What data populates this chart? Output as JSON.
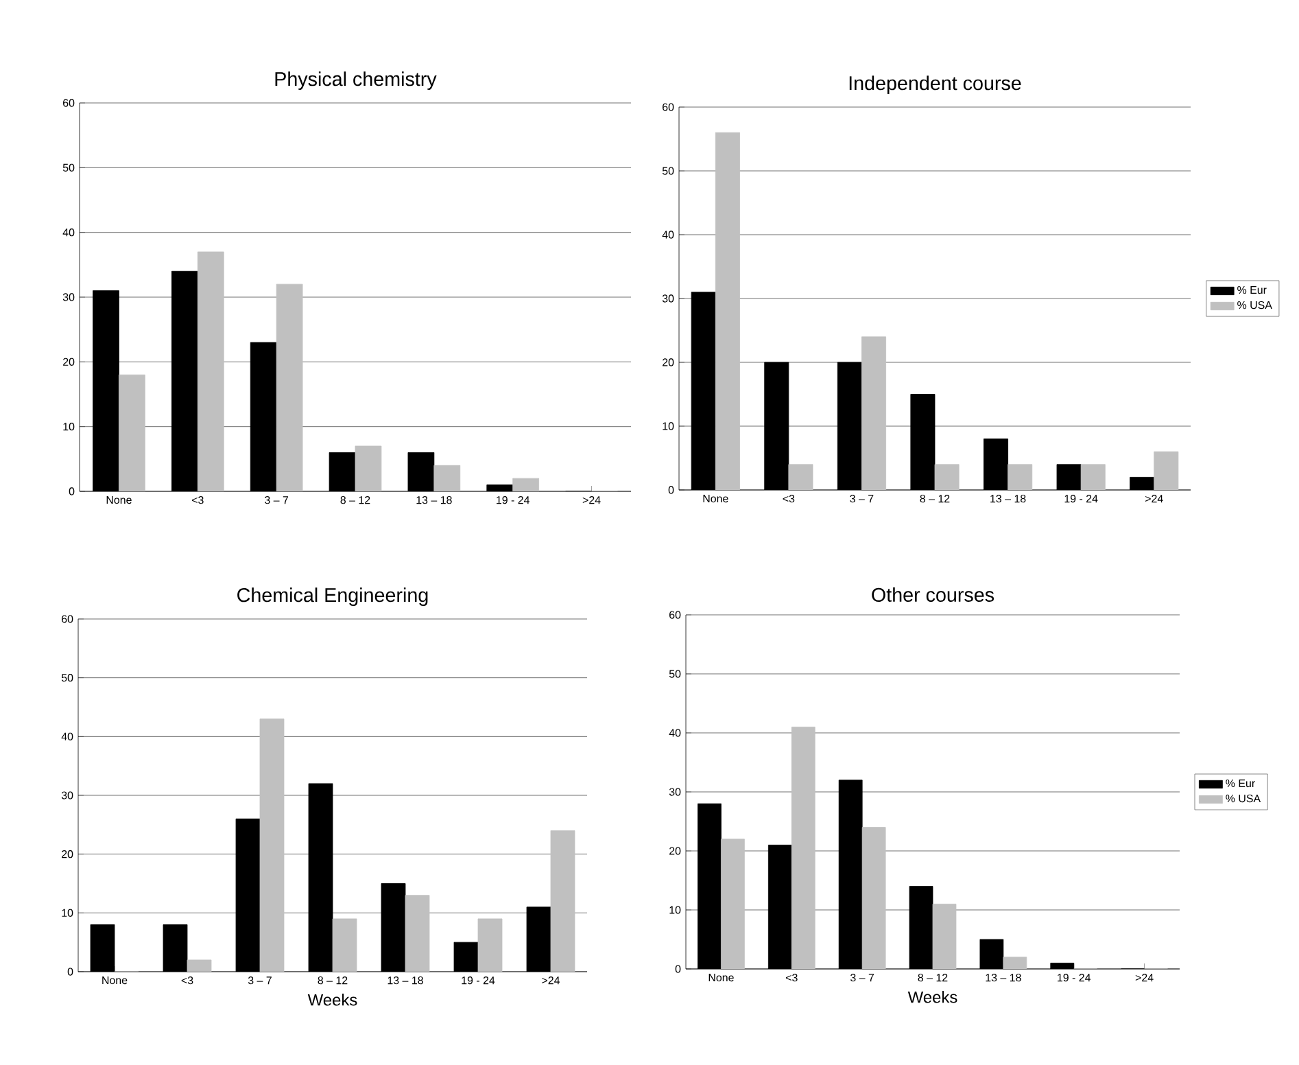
{
  "chart_data": [
    {
      "type": "bar",
      "title": "Physical chemistry",
      "categories": [
        "None",
        "<3",
        "3 – 7",
        "8 – 12",
        "13 – 18",
        "19 - 24",
        ">24"
      ],
      "ylim": [
        0,
        60
      ],
      "yticks": [
        0,
        10,
        20,
        30,
        40,
        50,
        60
      ],
      "grid": "y",
      "series": [
        {
          "color": "#000000",
          "values": [
            31,
            34,
            23,
            6,
            6,
            1,
            0
          ]
        },
        {
          "color": "#c0c0c0",
          "values": [
            18,
            37,
            32,
            7,
            4,
            2,
            0
          ]
        }
      ]
    },
    {
      "type": "bar",
      "title": "Independent course",
      "categories": [
        "None",
        "<3",
        "3 – 7",
        "8 – 12",
        "13 – 18",
        "19 - 24",
        ">24"
      ],
      "ylim": [
        0,
        60
      ],
      "yticks": [
        0,
        10,
        20,
        30,
        40,
        50,
        60
      ],
      "grid": "y",
      "legend": "right",
      "series": [
        {
          "name": "% Eur",
          "color": "#000000",
          "values": [
            31,
            20,
            20,
            15,
            8,
            4,
            2
          ]
        },
        {
          "name": "% USA",
          "color": "#c0c0c0",
          "values": [
            56,
            4,
            24,
            4,
            4,
            4,
            6
          ]
        }
      ]
    },
    {
      "type": "bar",
      "title": "Chemical Engineering",
      "xlabel": "Weeks",
      "categories": [
        "None",
        "<3",
        "3 – 7",
        "8 – 12",
        "13 – 18",
        "19 - 24",
        ">24"
      ],
      "ylim": [
        0,
        60
      ],
      "yticks": [
        0,
        10,
        20,
        30,
        40,
        50,
        60
      ],
      "grid": "y",
      "series": [
        {
          "color": "#000000",
          "values": [
            8,
            8,
            26,
            32,
            15,
            5,
            11
          ]
        },
        {
          "color": "#c0c0c0",
          "values": [
            0,
            2,
            43,
            9,
            13,
            9,
            24
          ]
        }
      ]
    },
    {
      "type": "bar",
      "title": "Other courses",
      "xlabel": "Weeks",
      "categories": [
        "None",
        "<3",
        "3 – 7",
        "8 – 12",
        "13 – 18",
        "19 - 24",
        ">24"
      ],
      "ylim": [
        0,
        60
      ],
      "yticks": [
        0,
        10,
        20,
        30,
        40,
        50,
        60
      ],
      "grid": "y",
      "legend": "right",
      "series": [
        {
          "name": "% Eur",
          "color": "#000000",
          "values": [
            28,
            21,
            32,
            14,
            5,
            1,
            0
          ]
        },
        {
          "name": "% USA",
          "color": "#c0c0c0",
          "values": [
            22,
            41,
            24,
            11,
            2,
            0,
            0
          ]
        }
      ]
    }
  ]
}
